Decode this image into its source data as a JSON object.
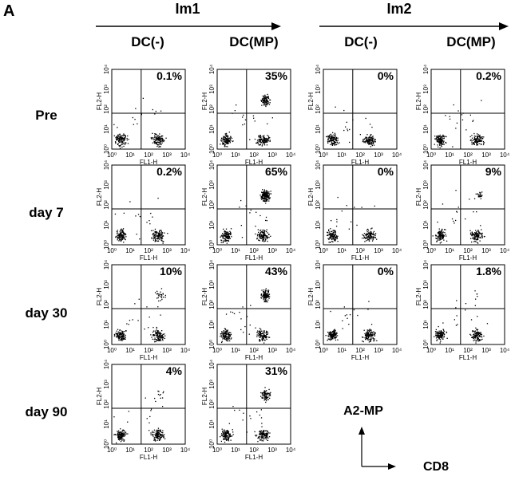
{
  "panel_label": "A",
  "groups": [
    "Im1",
    "Im2"
  ],
  "columns": [
    "DC(-)",
    "DC(MP)",
    "DC(-)",
    "DC(MP)"
  ],
  "rows": [
    {
      "label": "Pre",
      "percents": [
        "0.1%",
        "35%",
        "0%",
        "0.2%"
      ]
    },
    {
      "label": "day 7",
      "percents": [
        "0.2%",
        "65%",
        "0%",
        "9%"
      ]
    },
    {
      "label": "day 30",
      "percents": [
        "10%",
        "43%",
        "0%",
        "1.8%"
      ]
    },
    {
      "label": "day 90",
      "percents": [
        "4%",
        "31%"
      ]
    }
  ],
  "y_axis_label": "FL2-H",
  "x_axis_label": "FL1-H",
  "axis_ticks": [
    "10⁰",
    "10¹",
    "10²",
    "10³",
    "10⁴"
  ],
  "legend": {
    "y": "A2-MP",
    "x": "CD8"
  }
}
